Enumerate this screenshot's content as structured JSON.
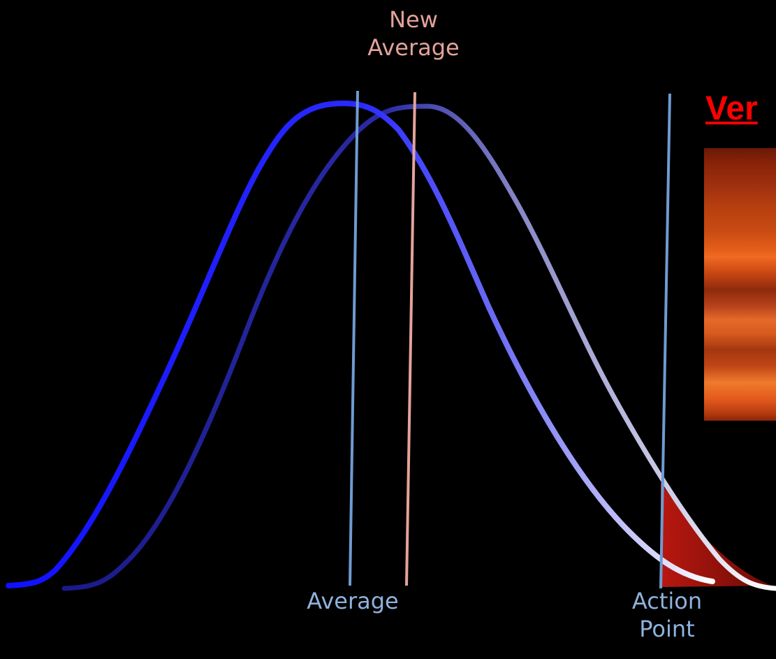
{
  "labels": {
    "new_average": "New\nAverage",
    "average": "Average",
    "action_point": "Action\nPoint"
  },
  "heading": "Ver",
  "colors": {
    "background": "#000000",
    "original_curve": "#1a1aff",
    "shifted_curve": "#1c1c9a",
    "average_line": "#6f9bd1",
    "new_average_line": "#e3a39a",
    "action_point_line": "#6f9bd1",
    "tail_fill": "#a01010",
    "heading": "#ff0000"
  },
  "icons": {
    "photo": "sunset-photo"
  }
}
